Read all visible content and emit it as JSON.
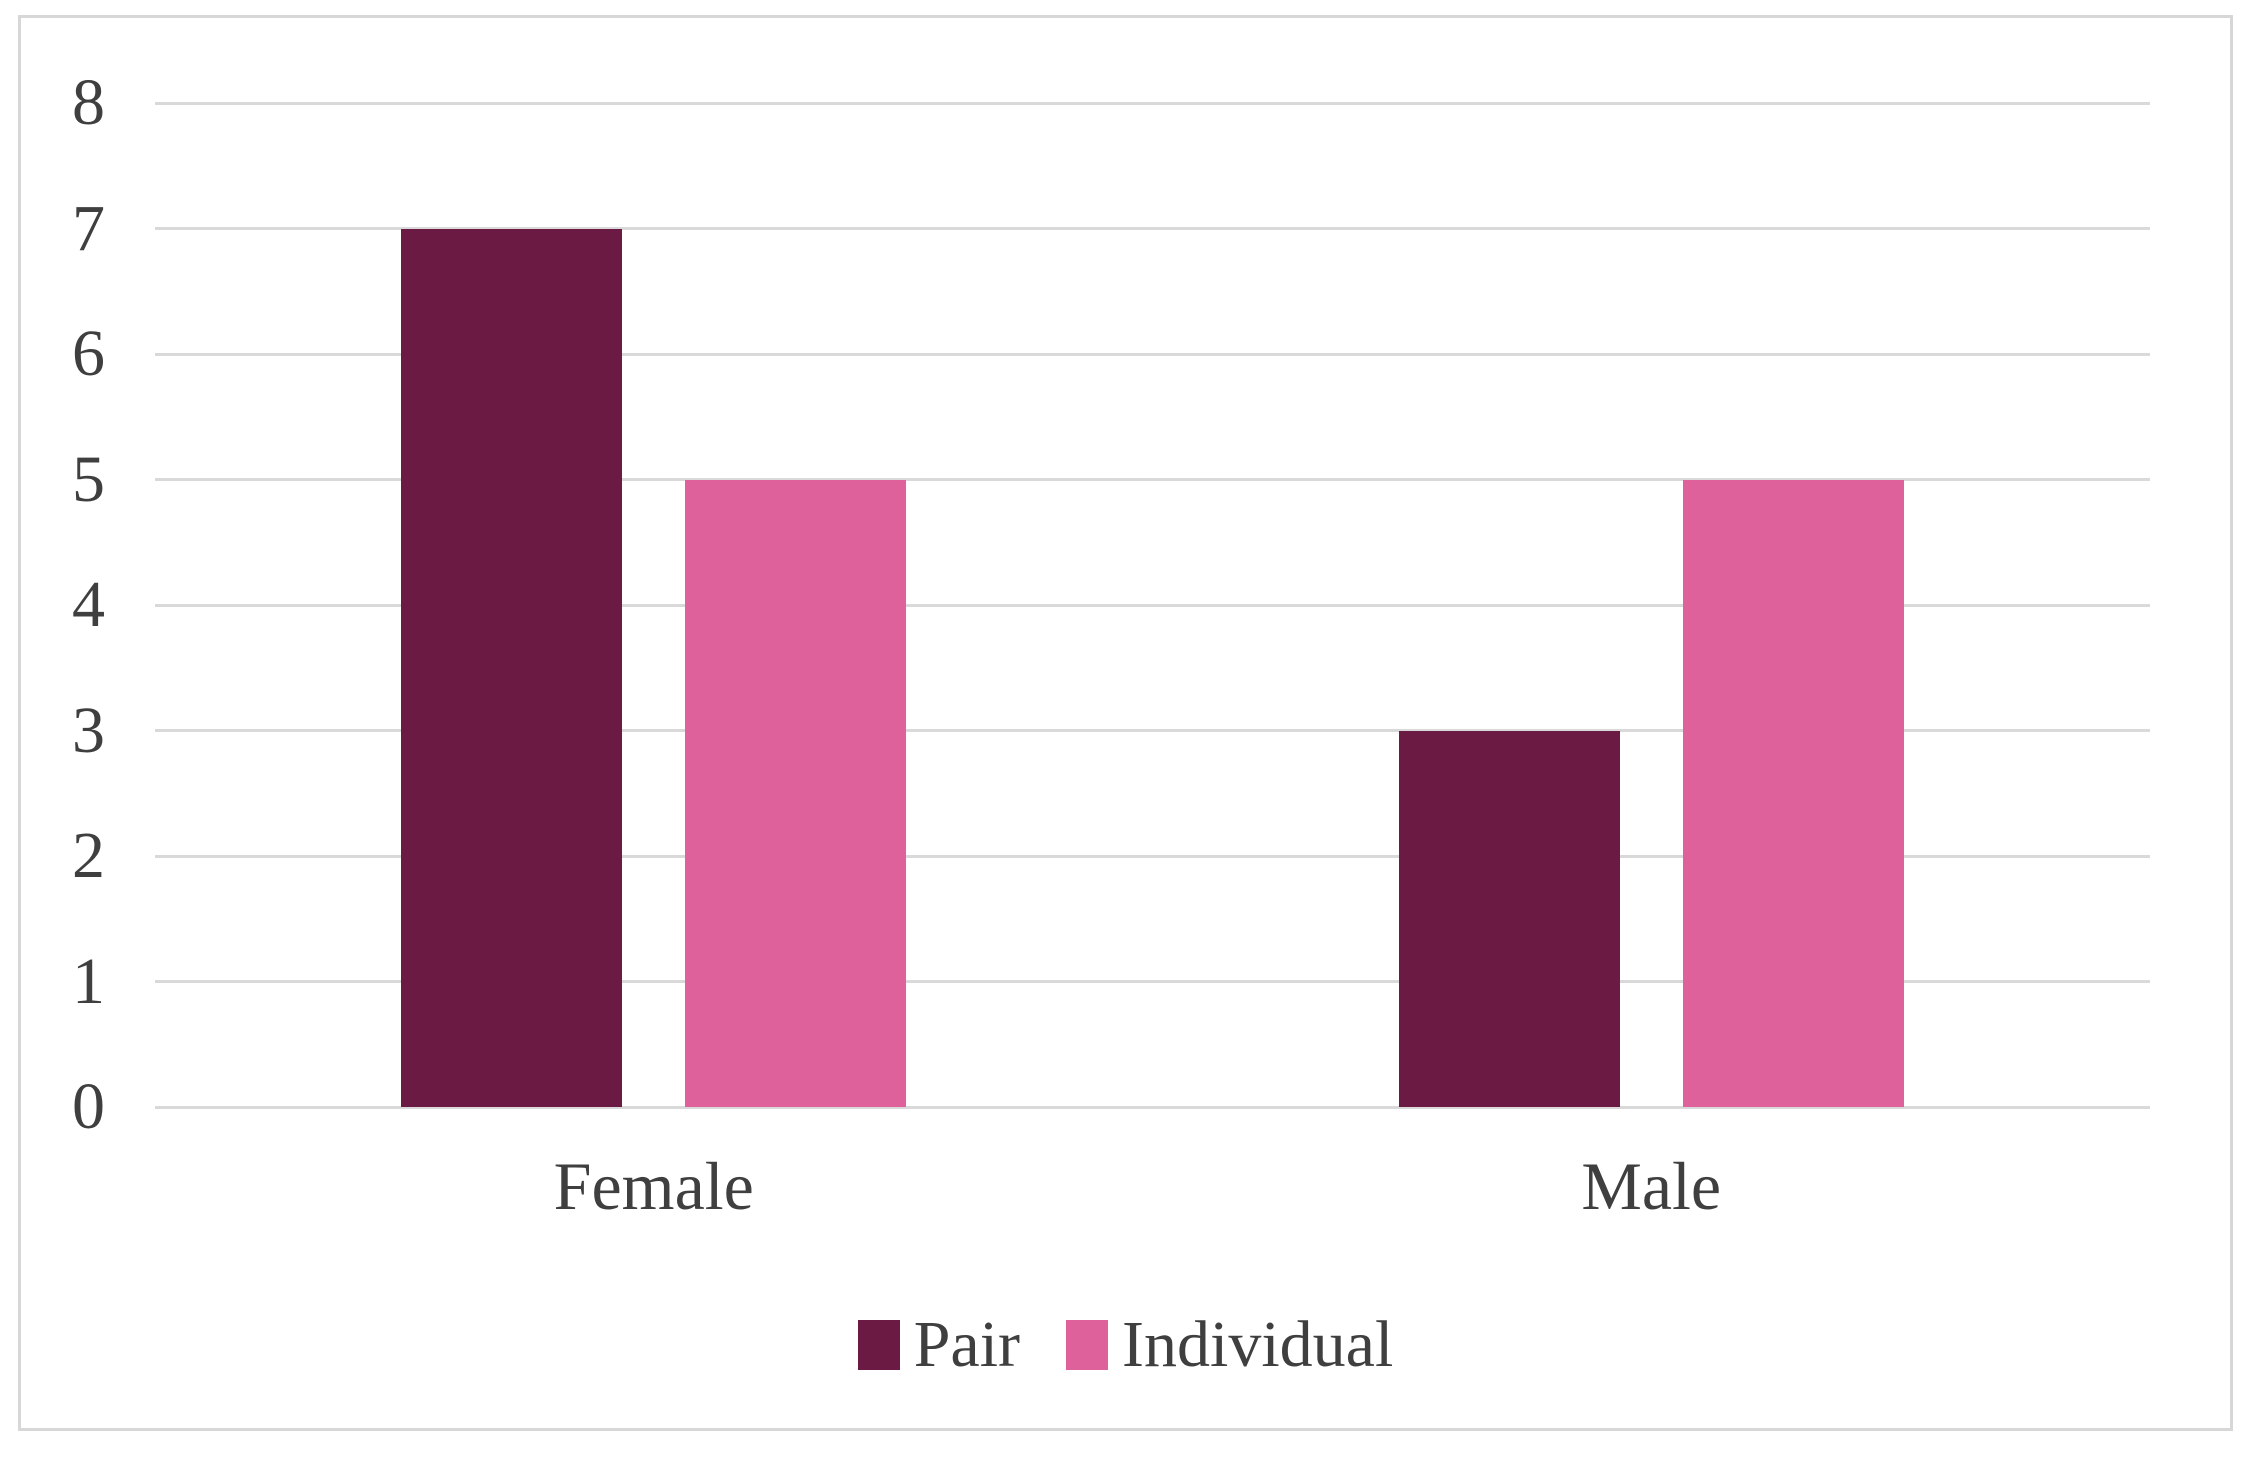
{
  "chart_data": {
    "type": "bar",
    "title": "",
    "xlabel": "",
    "ylabel": "",
    "categories": [
      "Female",
      "Male"
    ],
    "series": [
      {
        "name": "Pair",
        "color": "#6B1A44",
        "values": [
          7,
          3
        ]
      },
      {
        "name": "Individual",
        "color": "#DE619C",
        "values": [
          5,
          5
        ]
      }
    ],
    "ylim": [
      0,
      8
    ],
    "yticks": [
      0,
      1,
      2,
      3,
      4,
      5,
      6,
      7,
      8
    ],
    "grid": true,
    "legend_position": "bottom"
  },
  "colors": {
    "background": "#FFFFFF",
    "frame_border": "#D7D7D7",
    "gridline": "#D9D9D9",
    "axis_text": "#3F3F3F",
    "pair": "#6B1A44",
    "individual": "#DE619C"
  }
}
